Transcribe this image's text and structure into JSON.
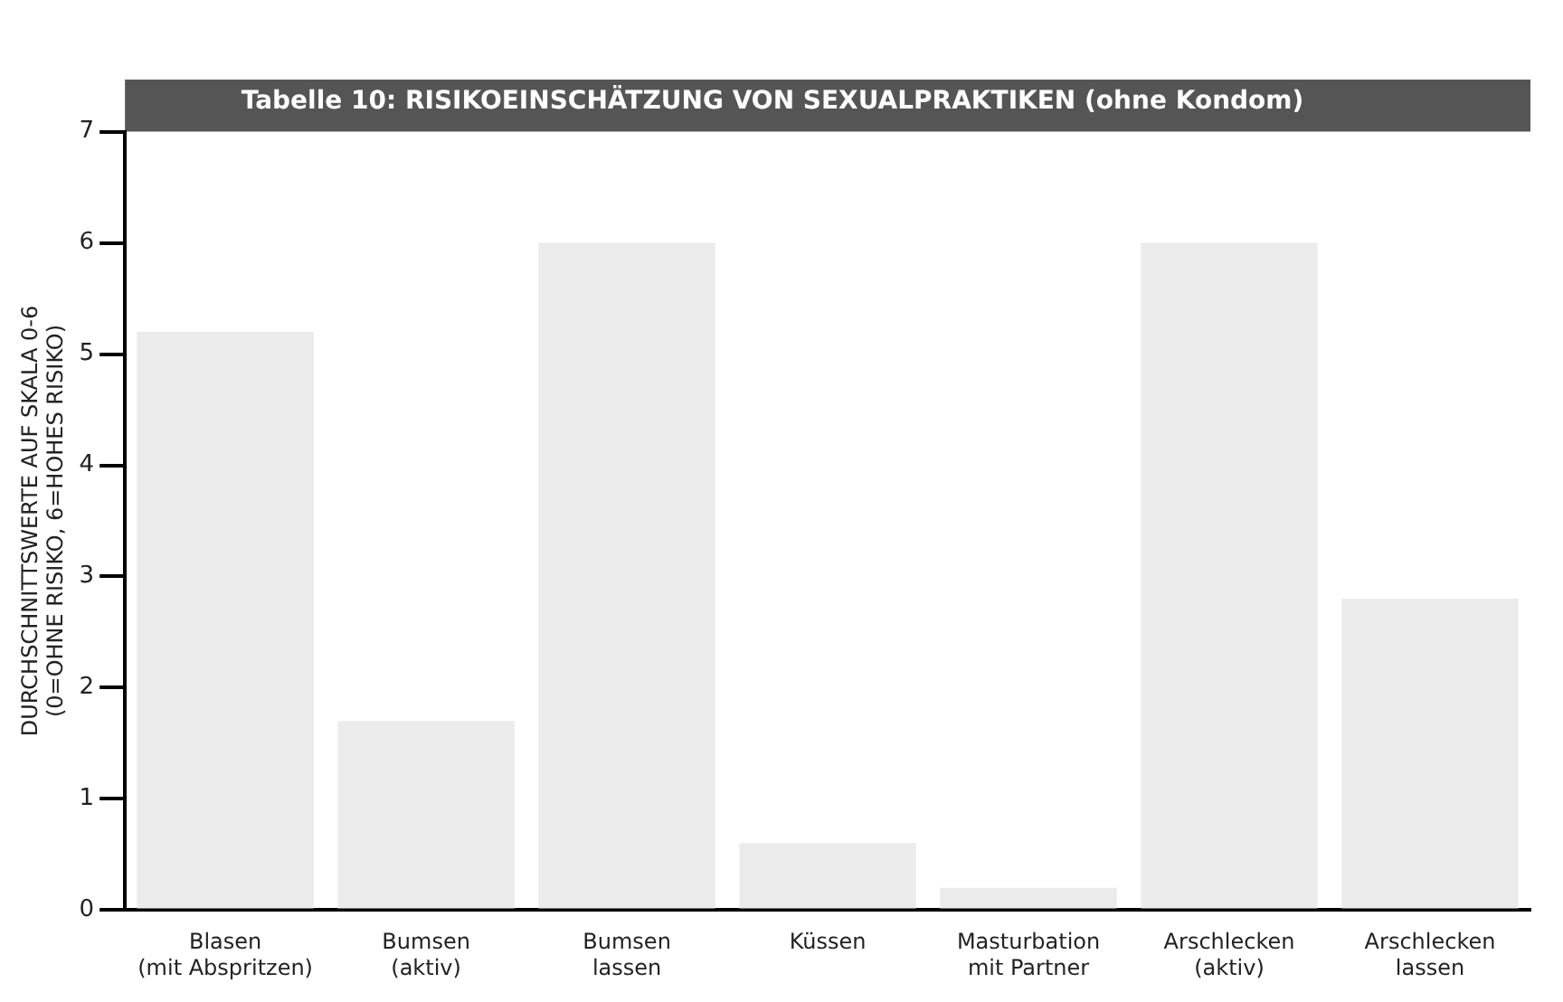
{
  "chart_data": {
    "type": "bar",
    "title": "Tabelle 10: RISIKOEINSCHÄTZUNG VON SEXUALPRAKTIKEN (ohne Kondom)",
    "ylabel": "DURCHSCHNITTSWERTE AUF SKALA 0-6\n(0=OHNE RISIKO, 6=HOHES RISIKO)",
    "categories": [
      "Blasen\n(mit Abspritzen)",
      "Bumsen\n(aktiv)",
      "Bumsen\nlassen",
      "Küssen",
      "Masturbation\nmit Partner",
      "Arschlecken\n(aktiv)",
      "Arschlecken\nlassen"
    ],
    "values": [
      5.2,
      1.7,
      6.0,
      0.6,
      0.2,
      6.0,
      2.8
    ],
    "color": "#ebebeb",
    "ylim": [
      0,
      7
    ],
    "yticks": [
      0,
      1,
      2,
      3,
      4,
      5,
      6,
      7
    ],
    "grid": false
  }
}
